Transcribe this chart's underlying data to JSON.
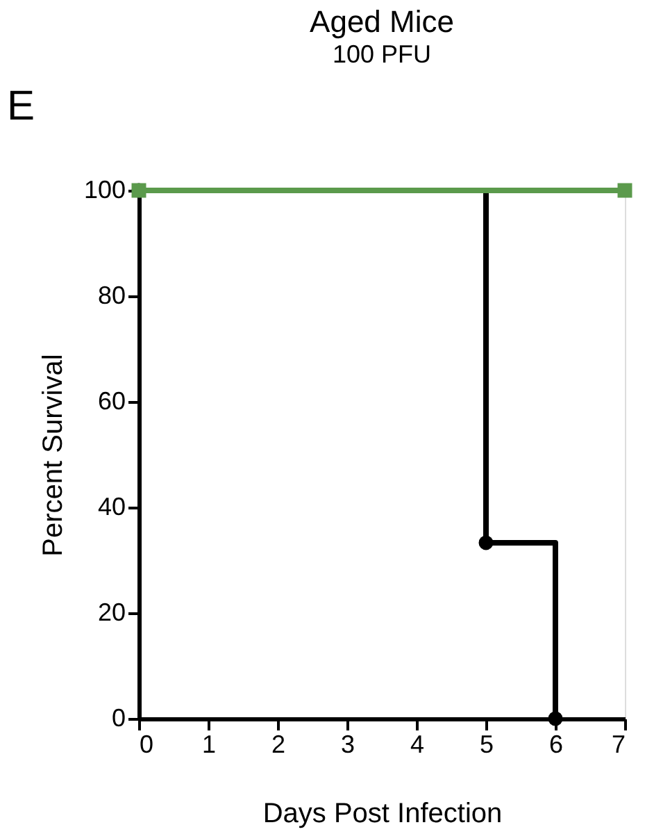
{
  "chart_data": {
    "type": "step",
    "title": "Aged Mice",
    "subtitle": "100 PFU",
    "xlabel": "Days Post Infection",
    "ylabel": "Percent Survival",
    "annotations": [
      "E"
    ],
    "xlim": [
      0,
      7
    ],
    "xticks": [
      0,
      1,
      2,
      3,
      4,
      5,
      6,
      7
    ],
    "ylim": [
      0,
      100
    ],
    "yticks": [
      0,
      20,
      40,
      60,
      80,
      100
    ],
    "grid": false,
    "series": [
      {
        "x": [
          0,
          5,
          6
        ],
        "values": [
          100,
          33.3,
          0
        ],
        "color": "#000000",
        "marker": "circle"
      },
      {
        "x": [
          0,
          7
        ],
        "values": [
          100,
          100
        ],
        "color": "#5b9a4c",
        "marker": "square"
      }
    ]
  }
}
